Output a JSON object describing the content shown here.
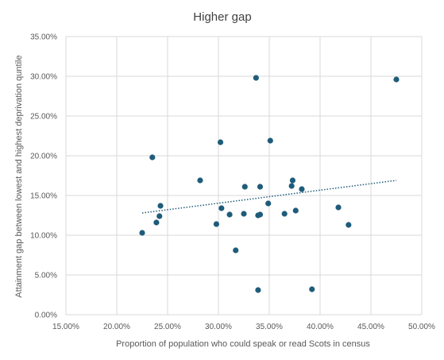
{
  "chart_data": {
    "type": "scatter",
    "title": "Higher gap",
    "xlabel": "Proportion of population who could speak or read Scots in census",
    "ylabel": "Attainment gap between lowest and highest deprivation quntile",
    "xlim": [
      0.15,
      0.5
    ],
    "ylim": [
      0.0,
      0.35
    ],
    "x_ticks": [
      "15.00%",
      "20.00%",
      "25.00%",
      "30.00%",
      "35.00%",
      "40.00%",
      "45.00%",
      "50.00%"
    ],
    "y_ticks": [
      "0.00%",
      "5.00%",
      "10.00%",
      "15.00%",
      "20.00%",
      "25.00%",
      "30.00%",
      "35.00%"
    ],
    "grid": true,
    "marker_color": "#1f5c7a",
    "trendline": {
      "type": "linear",
      "style": "dotted",
      "color": "#1f5c7a",
      "x_start": 0.225,
      "y_start": 0.128,
      "x_end": 0.475,
      "y_end": 0.169
    },
    "points": [
      {
        "x": 0.225,
        "y": 0.103
      },
      {
        "x": 0.235,
        "y": 0.198
      },
      {
        "x": 0.239,
        "y": 0.116
      },
      {
        "x": 0.242,
        "y": 0.124
      },
      {
        "x": 0.243,
        "y": 0.137
      },
      {
        "x": 0.282,
        "y": 0.169
      },
      {
        "x": 0.298,
        "y": 0.114
      },
      {
        "x": 0.302,
        "y": 0.217
      },
      {
        "x": 0.303,
        "y": 0.134
      },
      {
        "x": 0.311,
        "y": 0.126
      },
      {
        "x": 0.317,
        "y": 0.081
      },
      {
        "x": 0.325,
        "y": 0.127
      },
      {
        "x": 0.326,
        "y": 0.161
      },
      {
        "x": 0.337,
        "y": 0.298
      },
      {
        "x": 0.339,
        "y": 0.031
      },
      {
        "x": 0.339,
        "y": 0.125
      },
      {
        "x": 0.341,
        "y": 0.126
      },
      {
        "x": 0.341,
        "y": 0.161
      },
      {
        "x": 0.349,
        "y": 0.14
      },
      {
        "x": 0.351,
        "y": 0.219
      },
      {
        "x": 0.365,
        "y": 0.127
      },
      {
        "x": 0.372,
        "y": 0.162
      },
      {
        "x": 0.373,
        "y": 0.169
      },
      {
        "x": 0.376,
        "y": 0.131
      },
      {
        "x": 0.382,
        "y": 0.158
      },
      {
        "x": 0.392,
        "y": 0.032
      },
      {
        "x": 0.418,
        "y": 0.135
      },
      {
        "x": 0.428,
        "y": 0.113
      },
      {
        "x": 0.475,
        "y": 0.296
      }
    ]
  }
}
